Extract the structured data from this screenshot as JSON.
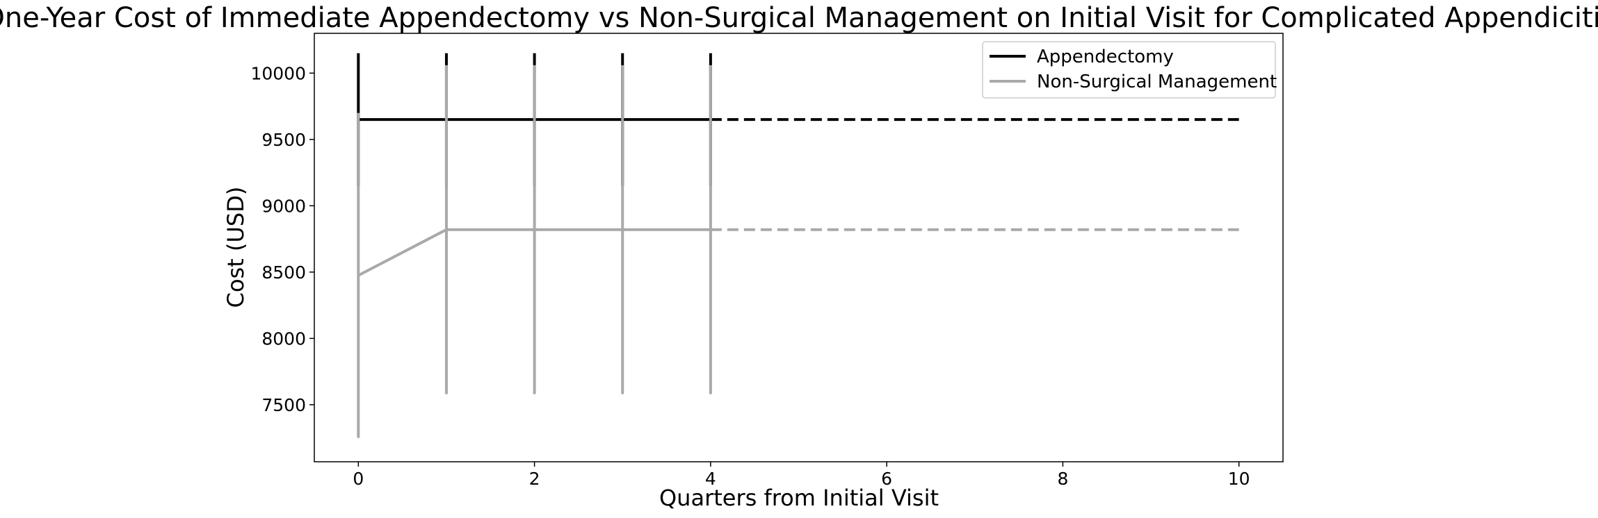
{
  "chart_data": {
    "type": "line",
    "title": "One-Year Cost of Immediate Appendectomy vs Non-Surgical Management on Initial Visit for Complicated Appendicitis",
    "xlabel": "Quarters from Initial Visit",
    "ylabel": "Cost (USD)",
    "xlim": [
      -0.5,
      10.5
    ],
    "ylim": [
      7070,
      10300
    ],
    "xticks": [
      0,
      2,
      4,
      6,
      8,
      10
    ],
    "yticks": [
      7500,
      8000,
      8500,
      9000,
      9500,
      10000
    ],
    "grid": false,
    "legend_position": "top-right",
    "series": [
      {
        "name": "Appendectomy",
        "color": "#000000",
        "x": [
          0,
          1,
          2,
          3,
          4
        ],
        "y": [
          9650,
          9650,
          9650,
          9650,
          9650
        ],
        "error_low": [
          9150,
          9150,
          9150,
          9150,
          9150
        ],
        "error_high": [
          10150,
          10150,
          10150,
          10150,
          10150
        ],
        "projection": {
          "x": [
            4,
            10
          ],
          "y": [
            9650,
            9650
          ]
        }
      },
      {
        "name": "Non-Surgical Management",
        "color": "#a9a9a9",
        "x": [
          0,
          1,
          2,
          3,
          4
        ],
        "y": [
          8475,
          8820,
          8820,
          8820,
          8820
        ],
        "error_low": [
          7250,
          7580,
          7580,
          7580,
          7580
        ],
        "error_high": [
          9700,
          10060,
          10060,
          10060,
          10060
        ],
        "projection": {
          "x": [
            4,
            10
          ],
          "y": [
            8820,
            8820
          ]
        }
      }
    ]
  }
}
